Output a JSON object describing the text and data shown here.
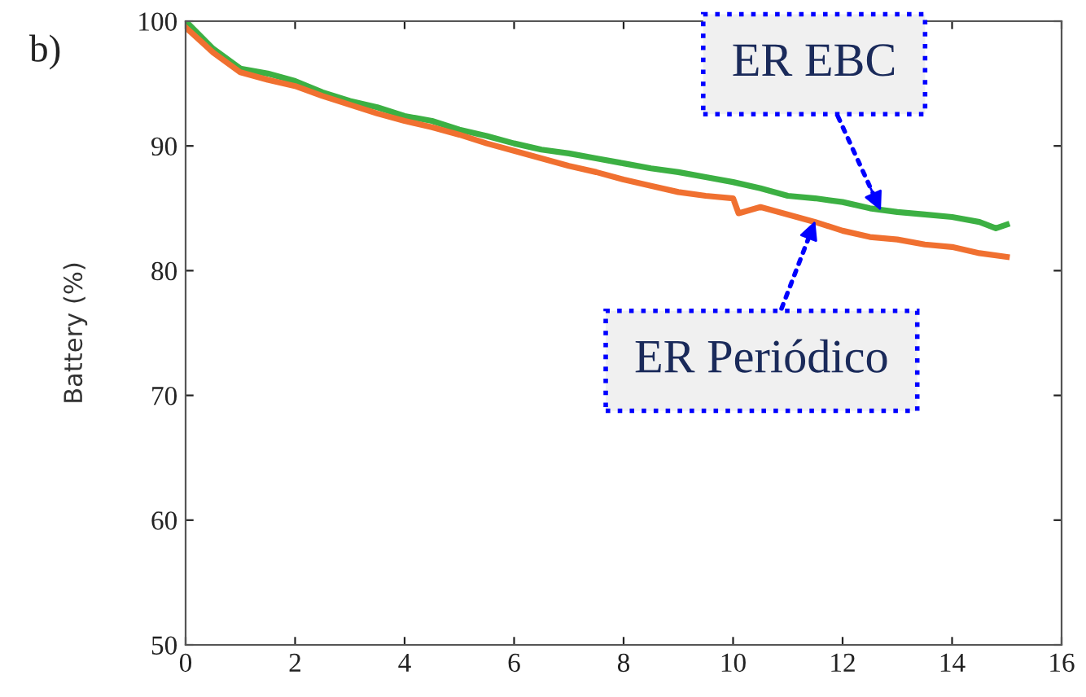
{
  "chart_data": {
    "type": "line",
    "ylabel": "Battery (%)",
    "xlim": [
      0,
      16
    ],
    "ylim": [
      50,
      100
    ],
    "xticks": [
      0,
      2,
      4,
      6,
      8,
      10,
      12,
      14,
      16
    ],
    "yticks": [
      50,
      60,
      70,
      80,
      90,
      100
    ],
    "grid": false,
    "marker": "none",
    "line_style": "solid",
    "annotations": [
      "b)",
      {
        "text": "ER EBC",
        "x": 12.7,
        "y": 84.8
      },
      {
        "text": "ER Periódico",
        "x": 11.5,
        "y": 84
      }
    ],
    "series": [
      {
        "color": "#3cb043",
        "x": [
          0,
          0.5,
          1,
          1.5,
          2,
          2.5,
          3,
          3.5,
          4,
          4.5,
          5,
          5.5,
          6,
          6.5,
          7,
          7.5,
          8,
          8.5,
          9,
          9.5,
          10,
          10.5,
          11,
          11.5,
          12,
          12.5,
          13,
          13.5,
          14,
          14.5,
          14.8,
          15
        ],
        "values": [
          100,
          97.8,
          96.2,
          95.8,
          95.2,
          94.3,
          93.6,
          93.1,
          92.4,
          92.0,
          91.3,
          90.8,
          90.2,
          89.7,
          89.4,
          89.0,
          88.6,
          88.2,
          87.9,
          87.5,
          87.1,
          86.6,
          86.0,
          85.8,
          85.5,
          85.0,
          84.7,
          84.5,
          84.3,
          83.9,
          83.4,
          83.7
        ]
      },
      {
        "color": "#f07030",
        "x": [
          0,
          0.5,
          1,
          1.5,
          2,
          2.5,
          3,
          3.5,
          4,
          4.5,
          5,
          5.5,
          6,
          6.5,
          7,
          7.5,
          8,
          8.5,
          9,
          9.5,
          10,
          10.1,
          10.5,
          11,
          11.5,
          12,
          12.5,
          13,
          13.5,
          14,
          14.5,
          15
        ],
        "values": [
          99.5,
          97.5,
          95.9,
          95.3,
          94.8,
          94.0,
          93.3,
          92.6,
          92.0,
          91.5,
          90.9,
          90.2,
          89.6,
          89.0,
          88.4,
          87.9,
          87.3,
          86.8,
          86.3,
          86.0,
          85.8,
          84.6,
          85.1,
          84.5,
          83.9,
          83.2,
          82.7,
          82.5,
          82.1,
          81.9,
          81.4,
          81.1
        ]
      }
    ]
  }
}
